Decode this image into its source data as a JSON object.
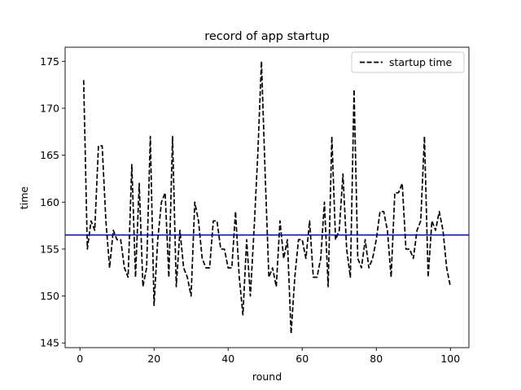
{
  "chart_data": {
    "type": "line",
    "title": "record of app startup",
    "xlabel": "round",
    "ylabel": "time",
    "xlim": [
      -4,
      105
    ],
    "ylim": [
      144.5,
      176.5
    ],
    "xticks": [
      0,
      20,
      40,
      60,
      80,
      100
    ],
    "yticks": [
      145,
      150,
      155,
      160,
      165,
      170,
      175
    ],
    "grid": false,
    "legend_position": "top-right",
    "series": [
      {
        "name": "startup time",
        "style": "dashed",
        "color": "#000000",
        "x": [
          1,
          2,
          3,
          4,
          5,
          6,
          7,
          8,
          9,
          10,
          11,
          12,
          13,
          14,
          15,
          16,
          17,
          18,
          19,
          20,
          21,
          22,
          23,
          24,
          25,
          26,
          27,
          28,
          29,
          30,
          31,
          32,
          33,
          34,
          35,
          36,
          37,
          38,
          39,
          40,
          41,
          42,
          43,
          44,
          45,
          46,
          47,
          48,
          49,
          50,
          51,
          52,
          53,
          54,
          55,
          56,
          57,
          58,
          59,
          60,
          61,
          62,
          63,
          64,
          65,
          66,
          67,
          68,
          69,
          70,
          71,
          72,
          73,
          74,
          75,
          76,
          77,
          78,
          79,
          80,
          81,
          82,
          83,
          84,
          85,
          86,
          87,
          88,
          89,
          90,
          91,
          92,
          93,
          94,
          95,
          96,
          97,
          98,
          99,
          100
        ],
        "y": [
          173,
          155,
          158,
          157,
          166,
          166,
          158,
          153,
          157,
          156,
          156,
          153,
          152,
          164,
          152,
          162,
          151,
          153,
          167,
          149,
          156,
          160,
          161,
          152,
          167,
          151,
          157,
          153,
          152,
          150,
          160,
          158,
          154,
          153,
          153,
          158,
          158,
          155,
          155,
          153,
          153,
          159,
          152,
          148,
          156,
          150,
          157,
          165,
          175,
          163,
          152,
          153,
          151,
          158,
          154,
          156,
          146,
          152,
          156,
          156,
          154,
          158,
          152,
          152,
          154,
          160,
          151,
          167,
          156,
          157,
          163,
          155,
          152,
          172,
          154,
          153,
          156,
          153,
          154,
          156,
          159,
          159,
          157,
          152,
          161,
          161,
          162,
          155,
          155,
          154,
          157,
          158,
          167,
          152,
          158,
          157,
          159,
          157,
          153,
          151
        ]
      }
    ],
    "reference_line": {
      "y": 156.5,
      "color": "#0000aa"
    }
  }
}
